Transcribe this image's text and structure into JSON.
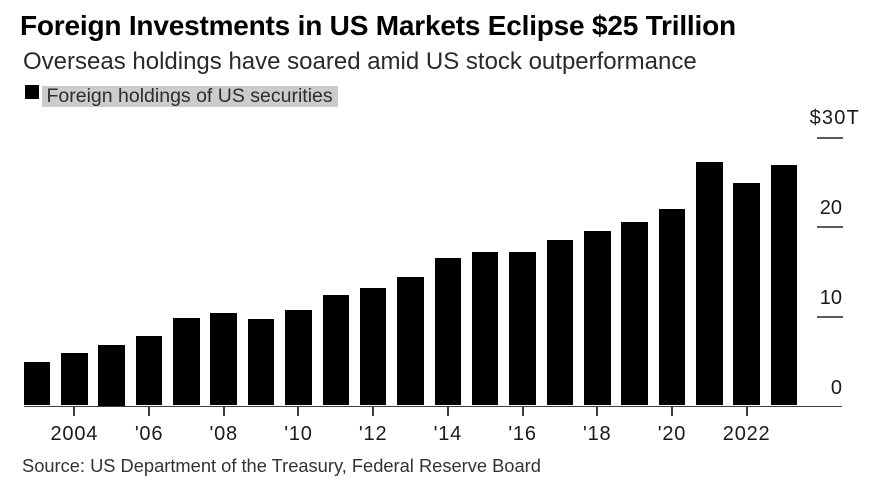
{
  "header": {
    "title": "Foreign Investments in US Markets Eclipse $25 Trillion",
    "subtitle": "Overseas holdings have soared amid US stock outperformance"
  },
  "legend": {
    "label": "Foreign holdings of US securities",
    "swatch_color": "#000000",
    "highlight_color": "#cccccc"
  },
  "source": "Source: US Department of the Treasury, Federal Reserve Board",
  "chart_data": {
    "type": "bar",
    "title": "Foreign Investments in US Markets Eclipse $25 Trillion",
    "subtitle": "Overseas holdings have soared amid US stock outperformance",
    "series": [
      {
        "name": "Foreign holdings of US securities",
        "values": [
          4.9,
          5.9,
          6.8,
          7.7,
          9.7,
          10.3,
          9.6,
          10.6,
          12.3,
          13.1,
          14.3,
          16.4,
          17.1,
          17.1,
          18.4,
          19.4,
          20.5,
          21.9,
          27.2,
          24.8,
          26.8
        ]
      }
    ],
    "x": [
      2003,
      2004,
      2005,
      2006,
      2007,
      2008,
      2009,
      2010,
      2011,
      2012,
      2013,
      2014,
      2015,
      2016,
      2017,
      2018,
      2019,
      2020,
      2021,
      2022,
      2023
    ],
    "unit": "trillion USD",
    "bar_color": "#000000",
    "grid": false,
    "legend_position": "top-left",
    "y_axis_side": "right",
    "ylim": [
      0,
      30
    ],
    "yticks": [
      {
        "value": 30,
        "label": "$30T"
      },
      {
        "value": 20,
        "label": "20"
      },
      {
        "value": 10,
        "label": "10"
      },
      {
        "value": 0,
        "label": "0"
      }
    ],
    "xticks": [
      {
        "year": 2004,
        "label": "2004"
      },
      {
        "year": 2006,
        "label": "'06"
      },
      {
        "year": 2008,
        "label": "'08"
      },
      {
        "year": 2010,
        "label": "'10"
      },
      {
        "year": 2012,
        "label": "'12"
      },
      {
        "year": 2014,
        "label": "'14"
      },
      {
        "year": 2016,
        "label": "'16"
      },
      {
        "year": 2018,
        "label": "'18"
      },
      {
        "year": 2020,
        "label": "'20"
      },
      {
        "year": 2022,
        "label": "2022"
      }
    ]
  }
}
